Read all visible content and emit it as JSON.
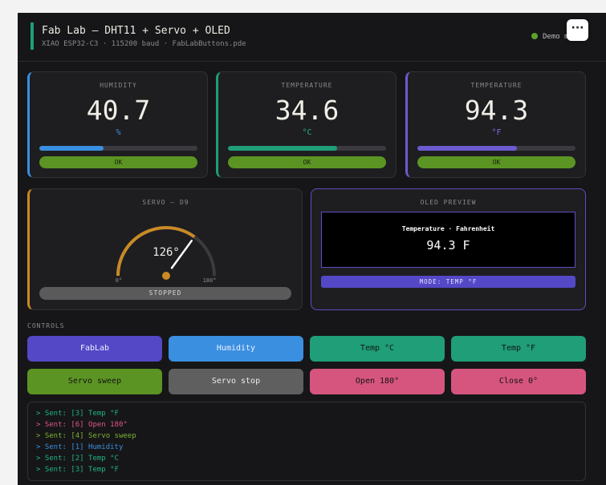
{
  "header": {
    "title": "Fab Lab — DHT11 + Servo + OLED",
    "subtitle": "XIAO ESP32-C3 · 115200 baud · FabLabButtons.pde",
    "status": "Demo m",
    "menu_label": "···"
  },
  "readings": [
    {
      "label": "HUMIDITY",
      "value": "40.7",
      "unit": "%",
      "level": 0.407,
      "status": "OK",
      "color": "#3a8fe0"
    },
    {
      "label": "TEMPERATURE",
      "value": "34.6",
      "unit": "°C",
      "level": 0.69,
      "status": "OK",
      "color": "#1f9e78"
    },
    {
      "label": "TEMPERATURE",
      "value": "94.3",
      "unit": "°F",
      "level": 0.63,
      "status": "OK",
      "color": "#6a5bd0"
    }
  ],
  "servo": {
    "label": "SERVO — D9",
    "angle_text": "126°",
    "angle": 126,
    "min_label": "0°",
    "max_label": "180°",
    "state": "STOPPED"
  },
  "oled": {
    "label": "OLED PREVIEW",
    "top_line": "Temperature · Fahrenheit",
    "value_line": "94.3 F",
    "mode": "MODE: TEMP °F"
  },
  "controls": {
    "label": "CONTROLS",
    "buttons": [
      {
        "label": "FabLab",
        "color": "#5448c6"
      },
      {
        "label": "Humidity",
        "color": "#3a8fe0"
      },
      {
        "label": "Temp °C",
        "color": "#1f9e78"
      },
      {
        "label": "Temp °F",
        "color": "#1f9e78"
      },
      {
        "label": "Servo sweep",
        "color": "#5b9423"
      },
      {
        "label": "Servo stop",
        "color": "#5f5f5f"
      },
      {
        "label": "Open 180°",
        "color": "#d6557f"
      },
      {
        "label": "Close 0°",
        "color": "#d6557f"
      }
    ]
  },
  "log": [
    {
      "text": "> Sent: [3] Temp °F",
      "color": "#1fb386"
    },
    {
      "text": "> Sent: [6] Open 180°",
      "color": "#e0577f"
    },
    {
      "text": "> Sent: [4] Servo sweep",
      "color": "#7bb32e"
    },
    {
      "text": "> Sent: [1] Humidity",
      "color": "#3a8fe0"
    },
    {
      "text": "> Sent: [2] Temp °C",
      "color": "#1fb386"
    },
    {
      "text": "> Sent: [3] Temp °F",
      "color": "#1fb386"
    }
  ]
}
